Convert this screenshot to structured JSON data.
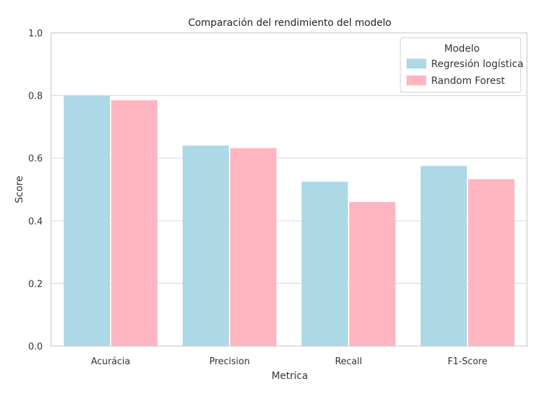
{
  "chart_data": {
    "type": "bar",
    "title": "Comparación del rendimiento del modelo",
    "xlabel": "Metrica",
    "ylabel": "Score",
    "categories": [
      "Acurácia",
      "Precision",
      "Recall",
      "F1-Score"
    ],
    "series": [
      {
        "name": "Regresión logística",
        "color": "#add8e6",
        "values": [
          0.8,
          0.64,
          0.525,
          0.575
        ]
      },
      {
        "name": "Random Forest",
        "color": "#ffb6c1",
        "values": [
          0.785,
          0.632,
          0.46,
          0.533
        ]
      }
    ],
    "ylim": [
      0,
      1.0
    ],
    "yticks": [
      "0.0",
      "0.2",
      "0.4",
      "0.6",
      "0.8",
      "1.0"
    ],
    "grid": true,
    "legend": {
      "title": "Modelo",
      "position": "top-right"
    }
  }
}
